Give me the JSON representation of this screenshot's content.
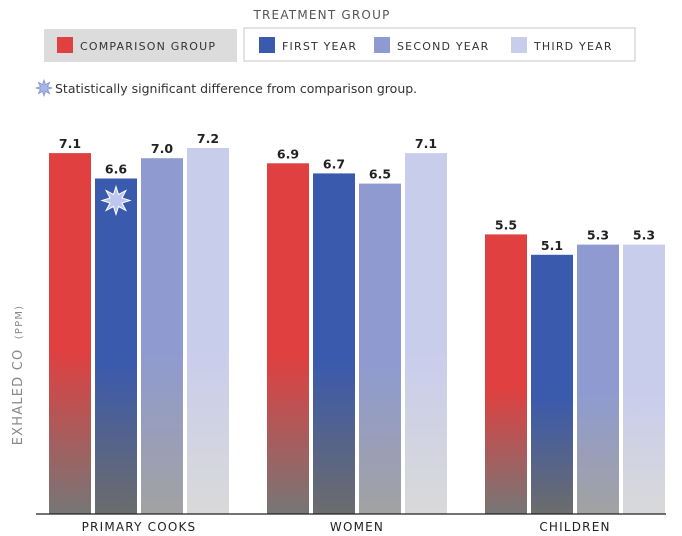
{
  "legend": {
    "treatment_title": "TREATMENT GROUP",
    "items": [
      {
        "label": "COMPARISON GROUP",
        "color": "#e04040"
      },
      {
        "label": "FIRST YEAR",
        "color": "#3a5aad"
      },
      {
        "label": "SECOND YEAR",
        "color": "#8f9bd0"
      },
      {
        "label": "THIRD YEAR",
        "color": "#c9cdec"
      }
    ]
  },
  "note": {
    "text": "Statistically significant difference from comparison group.",
    "icon": "star-burst-icon"
  },
  "chart_data": {
    "type": "bar",
    "categories": [
      "PRIMARY COOKS",
      "WOMEN",
      "CHILDREN"
    ],
    "ylabel_main": "EXHALED CO",
    "ylabel_unit": "(PPM)",
    "series": [
      {
        "name": "COMPARISON GROUP",
        "values": [
          7.1,
          6.9,
          5.5
        ]
      },
      {
        "name": "FIRST YEAR",
        "values": [
          6.6,
          6.7,
          5.1
        ]
      },
      {
        "name": "SECOND YEAR",
        "values": [
          7.0,
          6.5,
          5.3
        ]
      },
      {
        "name": "THIRD YEAR",
        "values": [
          7.2,
          7.1,
          5.3
        ]
      }
    ],
    "significant": [
      {
        "series": 1,
        "category": 0
      }
    ],
    "ylim": [
      0,
      7.2
    ],
    "grid": false,
    "legend_position": "top"
  }
}
